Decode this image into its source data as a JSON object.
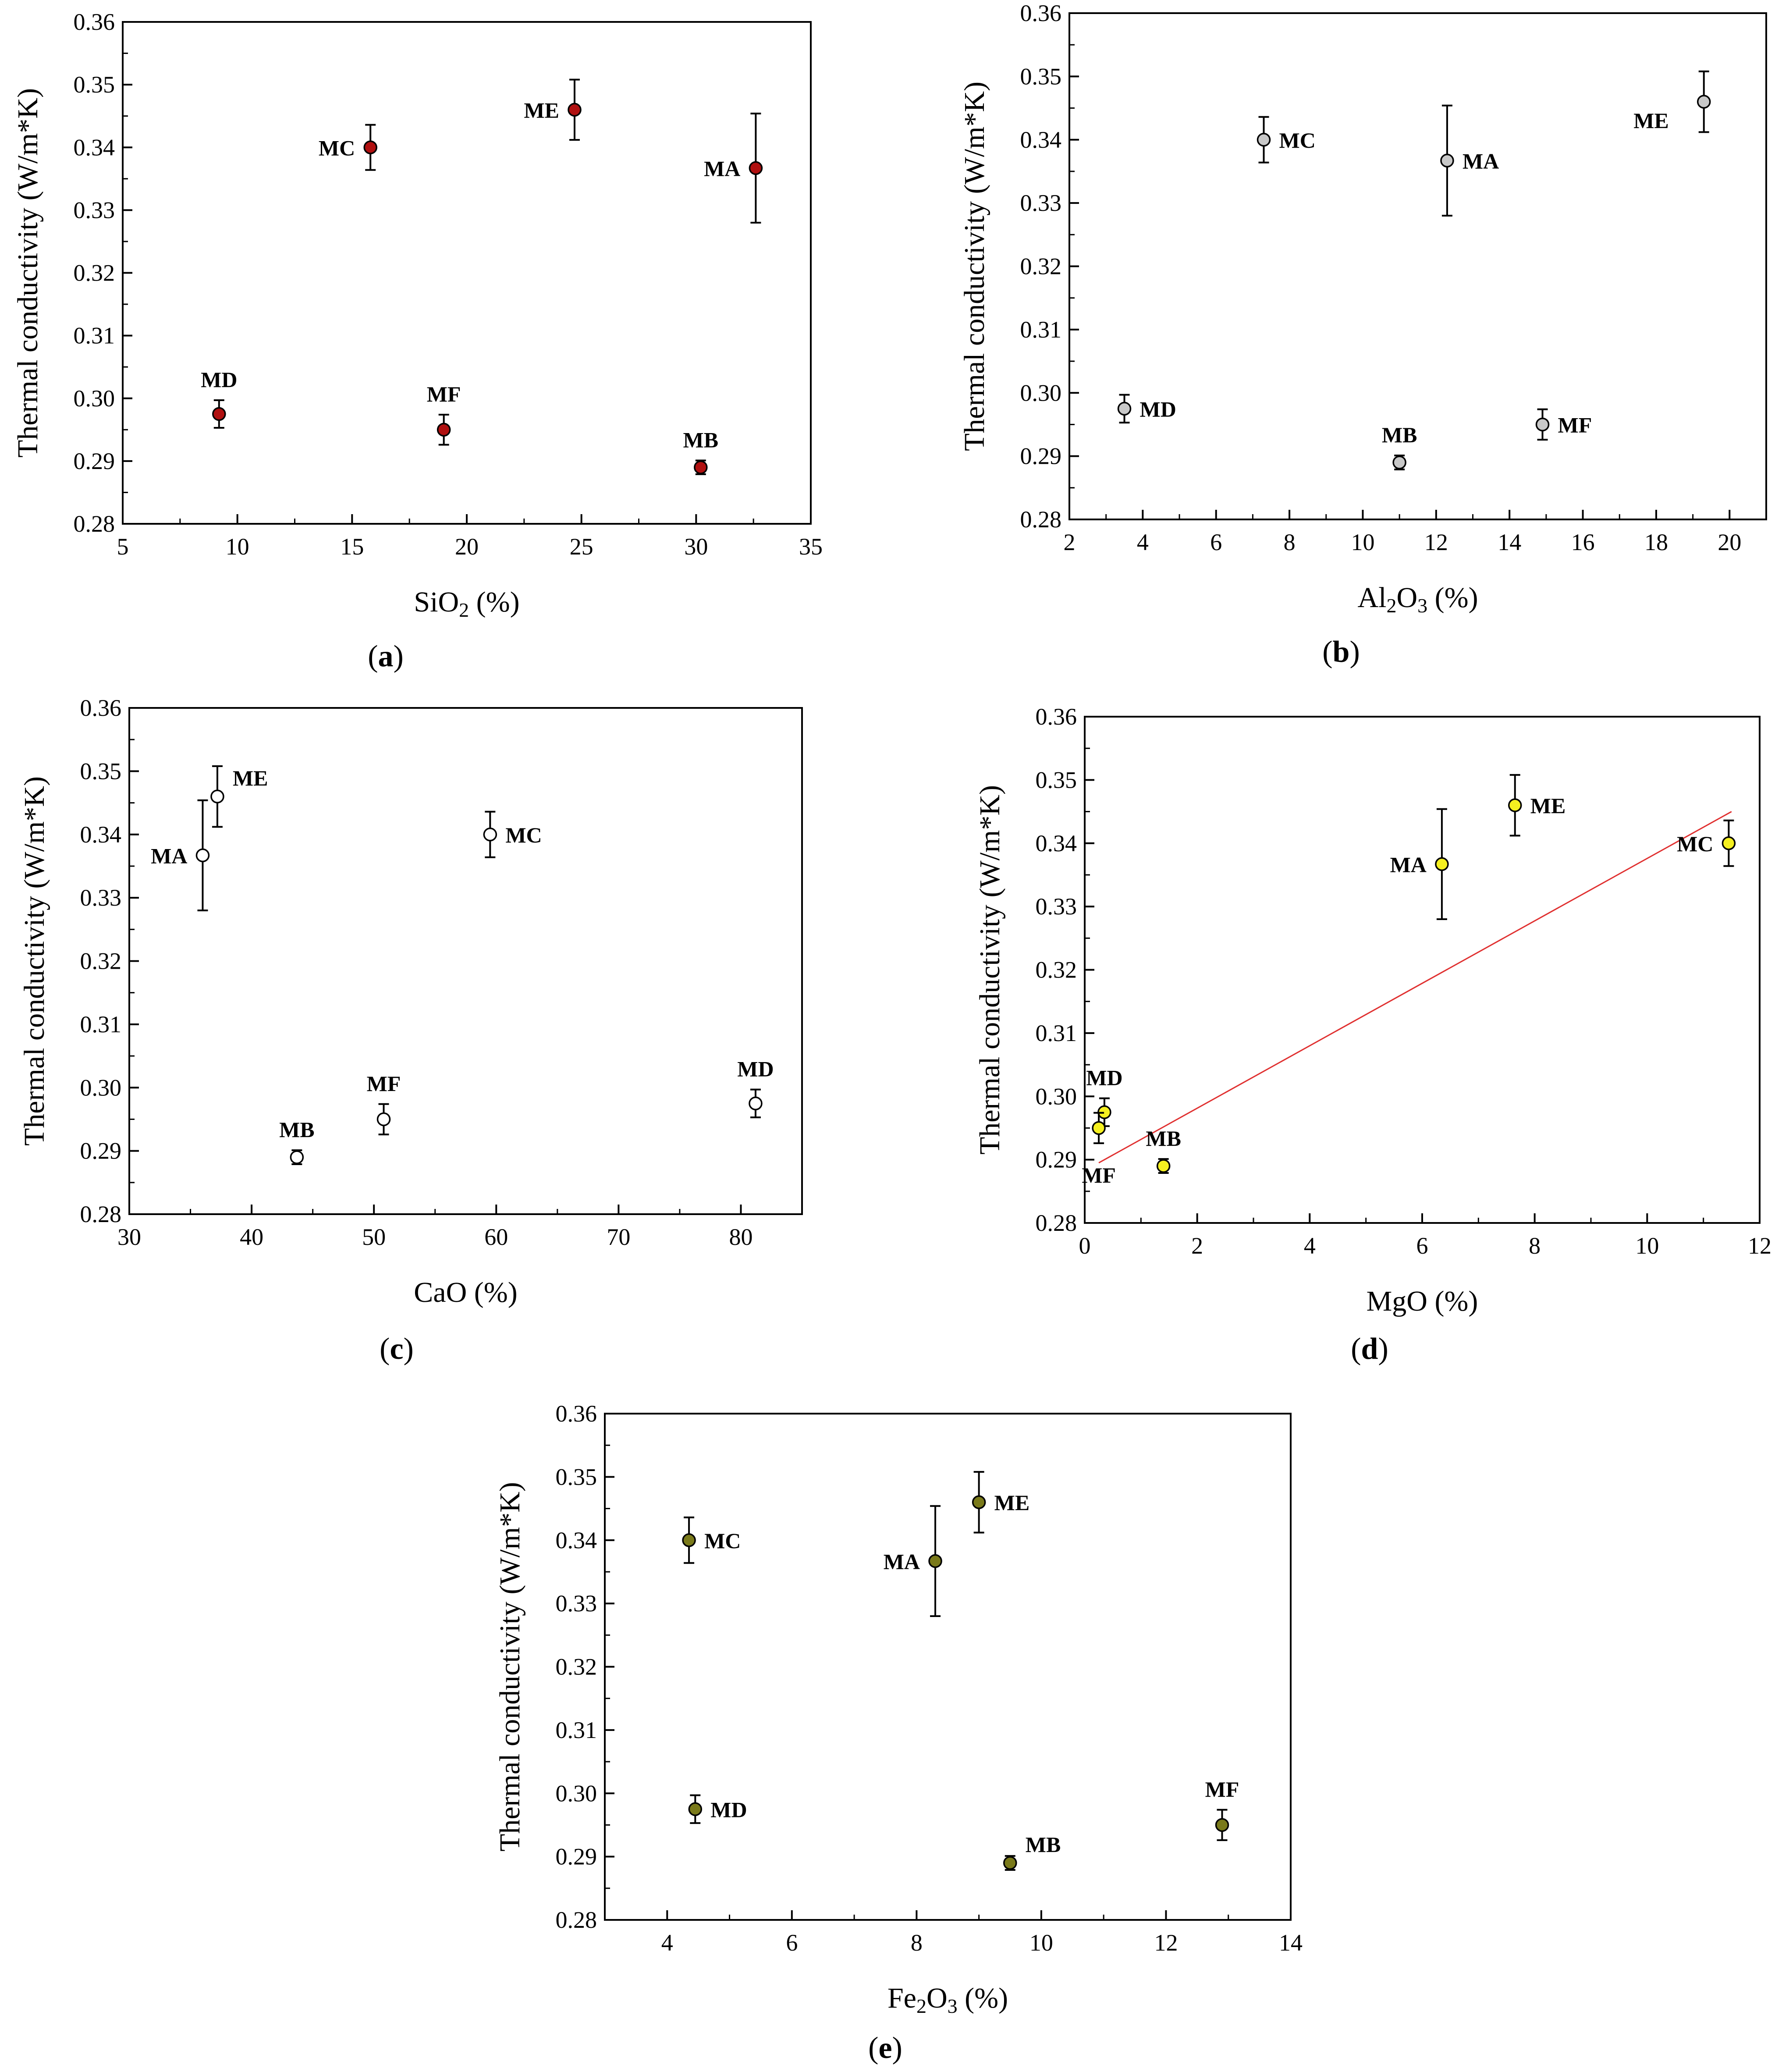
{
  "figure": {
    "panels": [
      {
        "caption": "(a)",
        "caption_letter": "a"
      },
      {
        "caption": "(b)",
        "caption_letter": "b"
      },
      {
        "caption": "(c)",
        "caption_letter": "c"
      },
      {
        "caption": "(d)",
        "caption_letter": "d"
      },
      {
        "caption": "(e)",
        "caption_letter": "e"
      }
    ]
  },
  "chart_data": [
    {
      "type": "scatter",
      "panel": "(a)",
      "xlabel": "SiO2 (%)",
      "xlabel_parts": {
        "base": "SiO",
        "sub": "2",
        "rest": " (%)"
      },
      "ylabel": "Thermal conductivity (W/m*K)",
      "xlim": [
        5,
        35
      ],
      "ylim": [
        0.28,
        0.36
      ],
      "xticks": [
        5,
        10,
        15,
        20,
        25,
        30,
        35
      ],
      "yticks": [
        "0.28",
        "0.29",
        "0.30",
        "0.31",
        "0.32",
        "0.33",
        "0.34",
        "0.35",
        "0.36"
      ],
      "marker_color": "#b01010",
      "points": [
        {
          "label": "MC",
          "x": 15.8,
          "y": 0.34,
          "err": 0.0036,
          "label_pos": "left"
        },
        {
          "label": "ME",
          "x": 24.7,
          "y": 0.346,
          "err": 0.0048,
          "label_pos": "left"
        },
        {
          "label": "MA",
          "x": 32.6,
          "y": 0.3367,
          "err": 0.0087,
          "label_pos": "left"
        },
        {
          "label": "MD",
          "x": 9.2,
          "y": 0.2975,
          "err": 0.0022,
          "label_pos": "above"
        },
        {
          "label": "MF",
          "x": 19.0,
          "y": 0.295,
          "err": 0.0024,
          "label_pos": "above"
        },
        {
          "label": "MB",
          "x": 30.2,
          "y": 0.289,
          "err": 0.0011,
          "label_pos": "above"
        }
      ]
    },
    {
      "type": "scatter",
      "panel": "(b)",
      "xlabel": "Al2O3 (%)",
      "xlabel_parts": {
        "base": "Al",
        "sub": "2",
        "mid": "O",
        "sub2": "3",
        "rest": " (%)"
      },
      "ylabel": "Thermal conductivity (W/m*K)",
      "xlim": [
        2,
        21
      ],
      "ylim": [
        0.28,
        0.36
      ],
      "xticks": [
        2,
        4,
        6,
        8,
        10,
        12,
        14,
        16,
        18,
        20
      ],
      "yticks": [
        "0.28",
        "0.29",
        "0.30",
        "0.31",
        "0.32",
        "0.33",
        "0.34",
        "0.35",
        "0.36"
      ],
      "marker_color": "#c8c8c8",
      "points": [
        {
          "label": "MC",
          "x": 7.3,
          "y": 0.34,
          "err": 0.0036,
          "label_pos": "right"
        },
        {
          "label": "MA",
          "x": 12.3,
          "y": 0.3367,
          "err": 0.0087,
          "label_pos": "right"
        },
        {
          "label": "ME",
          "x": 19.3,
          "y": 0.346,
          "err": 0.0048,
          "label_pos": "left-below"
        },
        {
          "label": "MD",
          "x": 3.5,
          "y": 0.2975,
          "err": 0.0022,
          "label_pos": "right"
        },
        {
          "label": "MB",
          "x": 11.0,
          "y": 0.289,
          "err": 0.0011,
          "label_pos": "above"
        },
        {
          "label": "MF",
          "x": 14.9,
          "y": 0.295,
          "err": 0.0024,
          "label_pos": "right"
        }
      ]
    },
    {
      "type": "scatter",
      "panel": "(c)",
      "xlabel": "CaO (%)",
      "ylabel": "Thermal conductivity (W/m*K)",
      "xlim": [
        30,
        85
      ],
      "ylim": [
        0.28,
        0.36
      ],
      "xticks": [
        30,
        40,
        50,
        60,
        70,
        80
      ],
      "yticks": [
        "0.28",
        "0.29",
        "0.30",
        "0.31",
        "0.32",
        "0.33",
        "0.34",
        "0.35",
        "0.36"
      ],
      "marker_color": "#ffffff",
      "points": [
        {
          "label": "MA",
          "x": 36.0,
          "y": 0.3367,
          "err": 0.0087,
          "label_pos": "left"
        },
        {
          "label": "ME",
          "x": 37.2,
          "y": 0.346,
          "err": 0.0048,
          "label_pos": "right-up"
        },
        {
          "label": "MC",
          "x": 59.5,
          "y": 0.34,
          "err": 0.0036,
          "label_pos": "right"
        },
        {
          "label": "MB",
          "x": 43.7,
          "y": 0.289,
          "err": 0.0011,
          "label_pos": "above"
        },
        {
          "label": "MF",
          "x": 50.8,
          "y": 0.295,
          "err": 0.0024,
          "label_pos": "above"
        },
        {
          "label": "MD",
          "x": 81.2,
          "y": 0.2975,
          "err": 0.0022,
          "label_pos": "above"
        }
      ]
    },
    {
      "type": "scatter",
      "panel": "(d)",
      "xlabel": "MgO (%)",
      "ylabel": "Thermal conductivity (W/m*K)",
      "xlim": [
        0,
        12
      ],
      "ylim": [
        0.28,
        0.36
      ],
      "xticks": [
        0,
        2,
        4,
        6,
        8,
        10,
        12
      ],
      "yticks": [
        "0.28",
        "0.29",
        "0.30",
        "0.31",
        "0.32",
        "0.33",
        "0.34",
        "0.35",
        "0.36"
      ],
      "marker_color": "#f5f020",
      "trendline": {
        "x": [
          0.25,
          11.5
        ],
        "y": [
          0.2895,
          0.345
        ],
        "color": "#e03030"
      },
      "points": [
        {
          "label": "MA",
          "x": 6.35,
          "y": 0.3367,
          "err": 0.0087,
          "label_pos": "left"
        },
        {
          "label": "ME",
          "x": 7.65,
          "y": 0.346,
          "err": 0.0048,
          "label_pos": "right"
        },
        {
          "label": "MC",
          "x": 11.45,
          "y": 0.34,
          "err": 0.0036,
          "label_pos": "left"
        },
        {
          "label": "MD",
          "x": 0.35,
          "y": 0.2975,
          "err": 0.0022,
          "label_pos": "above"
        },
        {
          "label": "MF",
          "x": 0.25,
          "y": 0.295,
          "err": 0.0024,
          "label_pos": "below"
        },
        {
          "label": "MB",
          "x": 1.4,
          "y": 0.289,
          "err": 0.0011,
          "label_pos": "above"
        }
      ]
    },
    {
      "type": "scatter",
      "panel": "(e)",
      "xlabel": "Fe2O3 (%)",
      "xlabel_parts": {
        "base": "Fe",
        "sub": "2",
        "mid": "O",
        "sub2": "3",
        "rest": " (%)"
      },
      "ylabel": "Thermal conductivity (W/m*K)",
      "xlim": [
        3,
        14
      ],
      "ylim": [
        0.28,
        0.36
      ],
      "xticks": [
        4,
        6,
        8,
        10,
        12,
        14
      ],
      "yticks": [
        "0.28",
        "0.29",
        "0.30",
        "0.31",
        "0.32",
        "0.33",
        "0.34",
        "0.35",
        "0.36"
      ],
      "marker_color": "#7a7a1a",
      "points": [
        {
          "label": "MC",
          "x": 4.35,
          "y": 0.34,
          "err": 0.0036,
          "label_pos": "right"
        },
        {
          "label": "MA",
          "x": 8.3,
          "y": 0.3367,
          "err": 0.0087,
          "label_pos": "left"
        },
        {
          "label": "ME",
          "x": 9.0,
          "y": 0.346,
          "err": 0.0048,
          "label_pos": "right"
        },
        {
          "label": "MD",
          "x": 4.45,
          "y": 0.2975,
          "err": 0.0022,
          "label_pos": "right"
        },
        {
          "label": "MB",
          "x": 9.5,
          "y": 0.289,
          "err": 0.0011,
          "label_pos": "right-up"
        },
        {
          "label": "MF",
          "x": 12.9,
          "y": 0.295,
          "err": 0.0024,
          "label_pos": "above"
        }
      ]
    }
  ]
}
